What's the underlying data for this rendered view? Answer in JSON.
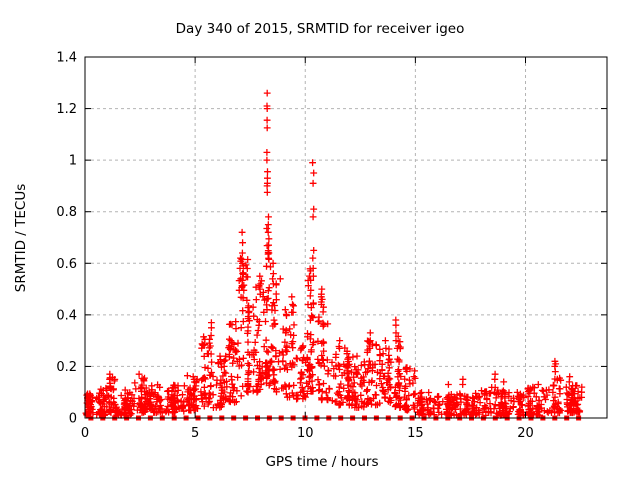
{
  "chart_data": {
    "type": "scatter",
    "title": "Day 340 of 2015, SRMTID for receiver igeo",
    "xlabel": "GPS time / hours",
    "ylabel": "SRMTID / TECUs",
    "xlim": [
      0,
      23.7
    ],
    "ylim": [
      0,
      1.4
    ],
    "xticks": [
      0,
      5,
      10,
      15,
      20
    ],
    "xtick_labels": [
      "0",
      "5",
      "10",
      "15",
      "20"
    ],
    "yticks": [
      0,
      0.2,
      0.4,
      0.6,
      0.8,
      1,
      1.2,
      1.4
    ],
    "ytick_labels": [
      "0",
      "0.2",
      "0.4",
      "0.6",
      "0.8",
      "1",
      "1.2",
      "1.4"
    ],
    "grid": true,
    "grid_style": "dashed",
    "legend": "none",
    "marker_color": "#ff0000",
    "grid_color": "#b4b4b4",
    "axis_color": "#000000",
    "background_color": "#ffffff",
    "seed": 2015340,
    "series": [
      {
        "name": "srmtid-scatter",
        "marker": "plus",
        "color": "#ff0000",
        "envelope_bands": [
          [
            0.0,
            0.5,
            0.01,
            0.1,
            40
          ],
          [
            0.5,
            1.0,
            0.01,
            0.12,
            40
          ],
          [
            1.0,
            1.4,
            0.02,
            0.16,
            30
          ],
          [
            1.4,
            2.2,
            0.01,
            0.11,
            55
          ],
          [
            2.2,
            2.7,
            0.02,
            0.16,
            35
          ],
          [
            2.7,
            3.6,
            0.02,
            0.13,
            60
          ],
          [
            3.6,
            4.6,
            0.02,
            0.13,
            65
          ],
          [
            4.6,
            5.3,
            0.03,
            0.17,
            50
          ],
          [
            5.3,
            5.9,
            0.04,
            0.33,
            45
          ],
          [
            5.9,
            6.5,
            0.04,
            0.24,
            45
          ],
          [
            6.5,
            7.0,
            0.06,
            0.38,
            40
          ],
          [
            7.0,
            7.4,
            0.08,
            0.62,
            40
          ],
          [
            7.4,
            8.0,
            0.1,
            0.52,
            55
          ],
          [
            8.0,
            8.45,
            0.12,
            0.75,
            50
          ],
          [
            8.45,
            9.0,
            0.1,
            0.55,
            45
          ],
          [
            9.0,
            9.6,
            0.08,
            0.45,
            40
          ],
          [
            9.6,
            10.1,
            0.07,
            0.28,
            35
          ],
          [
            10.1,
            10.55,
            0.1,
            0.58,
            45
          ],
          [
            10.55,
            11.1,
            0.07,
            0.45,
            45
          ],
          [
            11.1,
            12.0,
            0.05,
            0.28,
            60
          ],
          [
            12.0,
            12.7,
            0.04,
            0.24,
            45
          ],
          [
            12.7,
            13.4,
            0.05,
            0.3,
            45
          ],
          [
            13.4,
            14.0,
            0.05,
            0.27,
            40
          ],
          [
            14.0,
            14.5,
            0.04,
            0.33,
            35
          ],
          [
            14.5,
            15.1,
            0.03,
            0.2,
            35
          ],
          [
            15.1,
            16.0,
            0.01,
            0.1,
            50
          ],
          [
            16.0,
            17.0,
            0.01,
            0.1,
            55
          ],
          [
            17.0,
            18.0,
            0.01,
            0.1,
            55
          ],
          [
            18.0,
            19.0,
            0.01,
            0.12,
            55
          ],
          [
            19.0,
            20.0,
            0.01,
            0.1,
            55
          ],
          [
            20.0,
            21.0,
            0.01,
            0.12,
            55
          ],
          [
            21.0,
            21.6,
            0.02,
            0.16,
            35
          ],
          [
            21.6,
            22.65,
            0.02,
            0.13,
            60
          ]
        ],
        "peak_points": [
          {
            "x": 8.27,
            "ys": [
              1.26,
              1.21,
              1.2,
              1.155,
              1.125,
              1.03,
              1.0,
              0.955,
              0.93,
              0.91,
              0.9,
              0.875
            ]
          },
          {
            "x": 8.33,
            "ys": [
              0.78,
              0.75,
              0.72,
              0.695,
              0.67,
              0.64,
              0.615
            ]
          },
          {
            "x": 10.36,
            "ys": [
              0.99,
              0.95,
              0.91,
              0.81,
              0.78,
              0.65,
              0.62,
              0.58,
              0.55
            ]
          },
          {
            "x": 7.15,
            "ys": [
              0.72,
              0.68,
              0.64,
              0.6,
              0.56
            ]
          },
          {
            "x": 7.05,
            "ys": [
              0.62,
              0.58,
              0.54
            ]
          },
          {
            "x": 7.95,
            "ys": [
              0.55,
              0.52,
              0.5,
              0.48
            ]
          },
          {
            "x": 8.55,
            "ys": [
              0.6,
              0.56,
              0.52
            ]
          },
          {
            "x": 9.4,
            "ys": [
              0.47,
              0.44,
              0.41
            ]
          },
          {
            "x": 10.75,
            "ys": [
              0.5,
              0.48,
              0.47,
              0.46,
              0.45,
              0.44
            ]
          },
          {
            "x": 5.72,
            "ys": [
              0.37,
              0.35,
              0.32
            ]
          },
          {
            "x": 14.1,
            "ys": [
              0.38,
              0.36,
              0.33,
              0.3
            ]
          },
          {
            "x": 12.95,
            "ys": [
              0.33,
              0.3,
              0.27
            ]
          },
          {
            "x": 13.65,
            "ys": [
              0.3,
              0.27
            ]
          },
          {
            "x": 11.55,
            "ys": [
              0.3,
              0.27
            ]
          },
          {
            "x": 6.62,
            "ys": [
              0.3,
              0.27
            ]
          },
          {
            "x": 21.35,
            "ys": [
              0.22,
              0.21,
              0.2,
              0.18
            ]
          },
          {
            "x": 18.6,
            "ys": [
              0.17,
              0.15
            ]
          },
          {
            "x": 17.15,
            "ys": [
              0.15,
              0.13
            ]
          },
          {
            "x": 19.0,
            "ys": [
              0.14
            ]
          },
          {
            "x": 16.5,
            "ys": [
              0.13
            ]
          },
          {
            "x": 1.1,
            "ys": [
              0.17,
              0.15
            ]
          },
          {
            "x": 2.45,
            "ys": [
              0.17
            ]
          },
          {
            "x": 4.9,
            "ys": [
              0.16
            ]
          },
          {
            "x": 20.6,
            "ys": [
              0.13
            ]
          },
          {
            "x": 22.0,
            "ys": [
              0.16,
              0.14
            ]
          },
          {
            "x": 22.55,
            "ys": [
              0.12,
              0.1,
              0.08
            ]
          }
        ]
      },
      {
        "name": "zero-flags",
        "marker": "square",
        "color": "#ff0000",
        "y": 0,
        "x_start": 0.27,
        "x_step": 0.54,
        "count": 42
      }
    ]
  }
}
